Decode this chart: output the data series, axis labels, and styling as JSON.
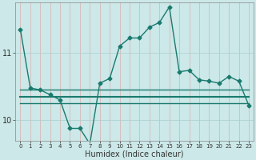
{
  "title": "",
  "xlabel": "Humidex (Indice chaleur)",
  "background_color": "#cce8e8",
  "grid_color_x": "#d8b0b0",
  "grid_color_y": "#aacece",
  "line_color": "#1a7a6e",
  "x_min": -0.5,
  "x_max": 23.5,
  "y_min": 9.7,
  "y_max": 11.75,
  "yticks": [
    10,
    11
  ],
  "series1_x": [
    0,
    1,
    2,
    3,
    4,
    5,
    6,
    7,
    8,
    9,
    10,
    11,
    12,
    13,
    14,
    15,
    16,
    17,
    18,
    19,
    20,
    21,
    22,
    23
  ],
  "series1_y": [
    11.35,
    10.48,
    10.45,
    10.38,
    10.3,
    9.88,
    9.88,
    9.65,
    10.55,
    10.62,
    11.1,
    11.22,
    11.22,
    11.38,
    11.45,
    11.68,
    10.72,
    10.74,
    10.6,
    10.58,
    10.55,
    10.65,
    10.58,
    10.22
  ],
  "series2_y": [
    10.45,
    10.45,
    10.45,
    10.45,
    10.45,
    10.45,
    10.45,
    10.45,
    10.45,
    10.45,
    10.45,
    10.45,
    10.45,
    10.45,
    10.45,
    10.45,
    10.45,
    10.45,
    10.45,
    10.45,
    10.45,
    10.45,
    10.45,
    10.45
  ],
  "series3_y": [
    10.35,
    10.35,
    10.35,
    10.35,
    10.35,
    10.35,
    10.35,
    10.35,
    10.35,
    10.35,
    10.35,
    10.35,
    10.35,
    10.35,
    10.35,
    10.35,
    10.35,
    10.35,
    10.35,
    10.35,
    10.35,
    10.35,
    10.35,
    10.35
  ],
  "series4_y": [
    10.25,
    10.25,
    10.25,
    10.25,
    10.25,
    10.25,
    10.25,
    10.25,
    10.25,
    10.25,
    10.25,
    10.25,
    10.25,
    10.25,
    10.25,
    10.25,
    10.25,
    10.25,
    10.25,
    10.25,
    10.25,
    10.25,
    10.25,
    10.25
  ],
  "xtick_labels": [
    "0",
    "1",
    "2",
    "3",
    "4",
    "5",
    "6",
    "7",
    "8",
    "9",
    "10",
    "11",
    "12",
    "13",
    "14",
    "15",
    "16",
    "17",
    "18",
    "19",
    "20",
    "21",
    "22",
    "23"
  ],
  "marker_style": "D",
  "marker_size": 2.5,
  "lw_main": 1.0,
  "lw_flat": 1.0
}
